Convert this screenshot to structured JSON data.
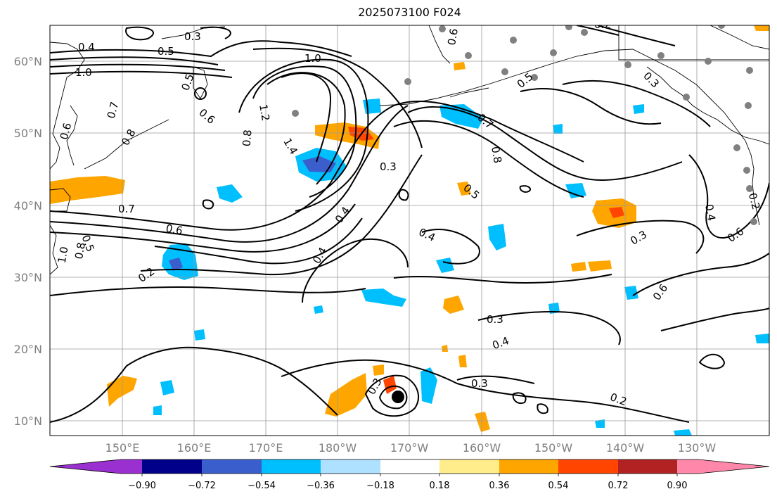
{
  "title": "2025073100 F024",
  "map": {
    "lat_labels": [
      "60°N",
      "50°N",
      "40°N",
      "30°N",
      "20°N",
      "10°N"
    ],
    "lon_labels": [
      "150°E",
      "160°E",
      "170°E",
      "180°W",
      "170°W",
      "160°W",
      "150°W",
      "140°W",
      "130°W"
    ]
  },
  "colorbar": {
    "tick_labels": [
      "−0.90",
      "−0.72",
      "−0.54",
      "−0.36",
      "−0.18",
      "0.18",
      "0.36",
      "0.54",
      "0.72",
      "0.90"
    ],
    "colors": [
      "#9b30d0",
      "#00008b",
      "#3a5fcd",
      "#00bfff",
      "#aee0ff",
      "#ffffff",
      "#ffec8b",
      "#ffa500",
      "#ff4500",
      "#b22222",
      "#ff88aa"
    ]
  },
  "contour_labels": [
    "0.3",
    "0.4",
    "0.5",
    "1.0",
    "1.0",
    "0.5",
    "0.6",
    "0.7",
    "0.8",
    "0.6",
    "1.2",
    "1.4",
    "0.8",
    "0.7",
    "0.8",
    "0.3",
    "0.5",
    "0.4",
    "0.7",
    "0.6",
    "0.5",
    "1.0",
    "0.8",
    "0.2",
    "0.4",
    "0.4",
    "0.3",
    "0.3",
    "0.4",
    "0.3",
    "0.2",
    "0.3",
    "0.2",
    "0.6",
    "0.5",
    "0.3",
    "0.6",
    "0.4",
    "0.2",
    "0.6"
  ],
  "station_marker_color": "#808080"
}
